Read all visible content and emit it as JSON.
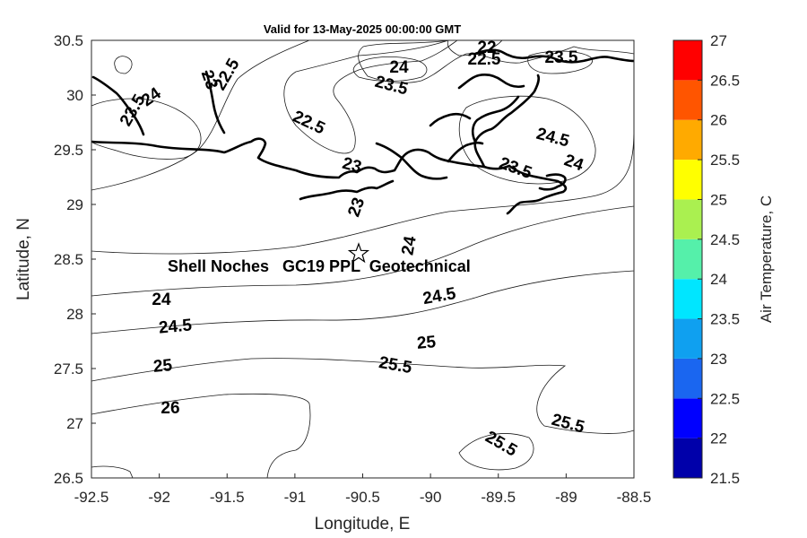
{
  "chart_data": {
    "type": "heatmap",
    "title": "Valid for 13-May-2025 00:00:00 GMT",
    "xlabel": "Longitude, E",
    "ylabel": "Latitude, N",
    "xlim": [
      -92.5,
      -88.5
    ],
    "ylim": [
      26.5,
      30.5
    ],
    "x_ticks": [
      "-92.5",
      "-92",
      "-91.5",
      "-91",
      "-90.5",
      "-90",
      "-89.5",
      "-89",
      "-88.5"
    ],
    "y_ticks": [
      "30.5",
      "30",
      "29.5",
      "29",
      "28.5",
      "28",
      "27.5",
      "27",
      "26.5"
    ],
    "colorbar": {
      "label": "Air Temperature, C",
      "ticks": [
        "27",
        "26.5",
        "26",
        "25.5",
        "25",
        "24.5",
        "24",
        "23.5",
        "23",
        "22.5",
        "22",
        "21.5"
      ],
      "levels": [
        21.5,
        22,
        22.5,
        23,
        23.5,
        24,
        24.5,
        25,
        25.5,
        26,
        26.5,
        27
      ],
      "colors": [
        "#0000aa",
        "#0000ff",
        "#1a66f0",
        "#0fa0f0",
        "#00e6ff",
        "#55f0aa",
        "#aaf050",
        "#ffff00",
        "#ffaa00",
        "#ff5500",
        "#ff0000",
        "#aa0000"
      ]
    },
    "contour_labels": [
      "22",
      "22.5",
      "22.5",
      "22.5",
      "23",
      "23",
      "23",
      "23.5",
      "23.5",
      "23.5",
      "23.5",
      "24",
      "24",
      "24",
      "24",
      "24",
      "24.5",
      "24.5",
      "24.5",
      "25",
      "25",
      "25.5",
      "25.5",
      "25.5",
      "26"
    ],
    "marker": {
      "lon": -90.53,
      "lat": 28.55,
      "symbol": "star"
    },
    "annotation": "Shell Noches   GC19 PPL  Geotechnical"
  }
}
